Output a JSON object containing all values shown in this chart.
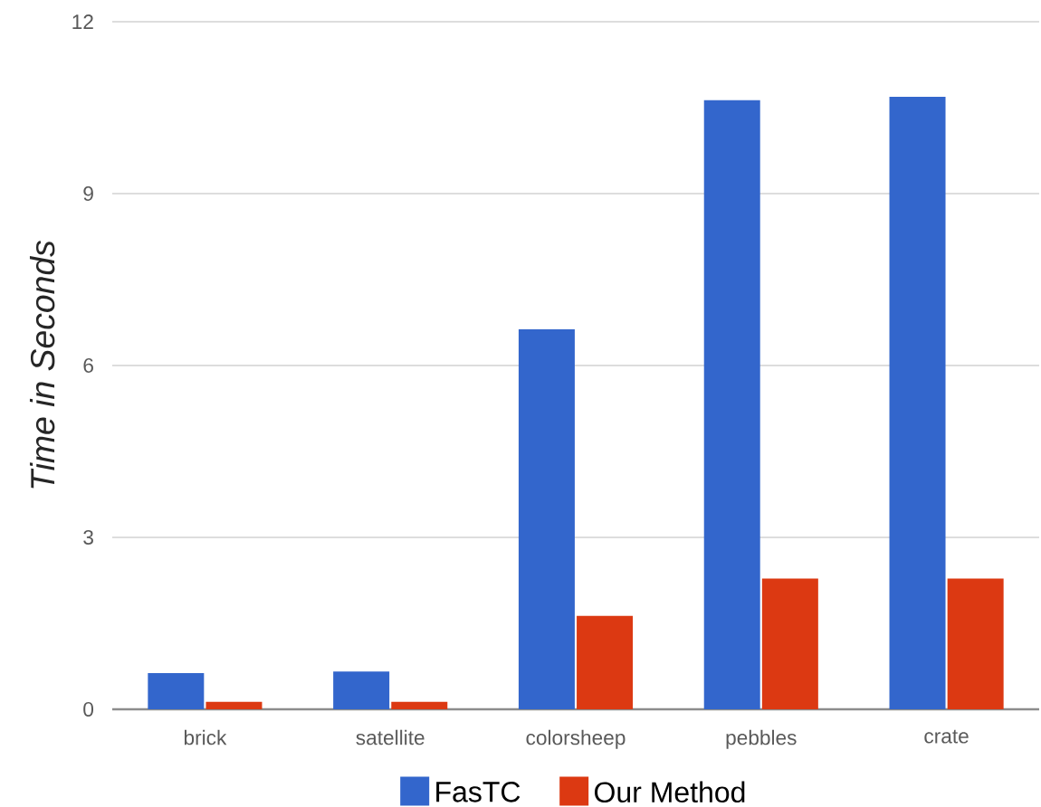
{
  "chart_data": {
    "type": "bar",
    "ylabel": "Time in Seconds",
    "categories": [
      "brick",
      "satellite",
      "colorsheep",
      "pebbles",
      "crate"
    ],
    "series": [
      {
        "name": "FasTC",
        "color": "#3366cc",
        "values": [
          0.63,
          0.66,
          6.63,
          10.63,
          10.69
        ]
      },
      {
        "name": "Our Method",
        "color": "#dc3912",
        "values": [
          0.13,
          0.13,
          1.63,
          2.28,
          2.28
        ]
      }
    ],
    "ylim": [
      0,
      12
    ],
    "yticks": [
      0,
      3,
      6,
      9,
      12
    ],
    "grid": "y",
    "legend": "bottom"
  }
}
